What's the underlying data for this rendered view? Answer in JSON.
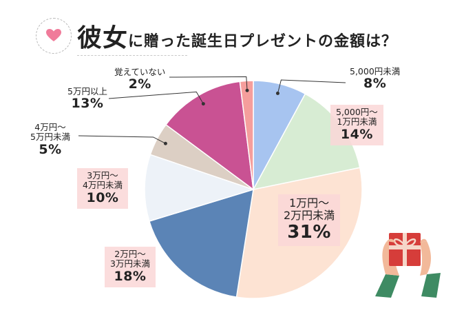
{
  "header": {
    "title_main": "彼女",
    "title_rest": "に贈った誕生日プレゼントの金額は？"
  },
  "chart_data": {
    "type": "pie",
    "title": "彼女に贈った誕生日プレゼントの金額は？",
    "slices": [
      {
        "label_lines": [
          "5,000円未満",
          ""
        ],
        "value": 8,
        "display": "8%",
        "color": "#a7c4f0"
      },
      {
        "label_lines": [
          "5,000円〜",
          "1万円未満"
        ],
        "value": 14,
        "display": "14%",
        "color": "#d7ecd3"
      },
      {
        "label_lines": [
          "1万円〜",
          "2万円未満"
        ],
        "value": 31,
        "display": "31%",
        "color": "#fde3d3"
      },
      {
        "label_lines": [
          "2万円〜",
          "3万円未満"
        ],
        "value": 18,
        "display": "18%",
        "color": "#5b84b6"
      },
      {
        "label_lines": [
          "3万円〜",
          "4万円未満"
        ],
        "value": 10,
        "display": "10%",
        "color": "#edf2f8"
      },
      {
        "label_lines": [
          "4万円〜",
          "5万円未満"
        ],
        "value": 5,
        "display": "5%",
        "color": "#dccfc4"
      },
      {
        "label_lines": [
          "5万円以上",
          ""
        ],
        "value": 13,
        "display": "13%",
        "color": "#c95293"
      },
      {
        "label_lines": [
          "覚えていない",
          ""
        ],
        "value": 2,
        "display": "2%",
        "color": "#f59e9c"
      }
    ]
  },
  "colors": {
    "heart": "#f07b9a",
    "gift": "#d63d3a",
    "ribbon": "#f5d6c8",
    "sleeve": "#3e8b63",
    "skin": "#f2b99a"
  }
}
